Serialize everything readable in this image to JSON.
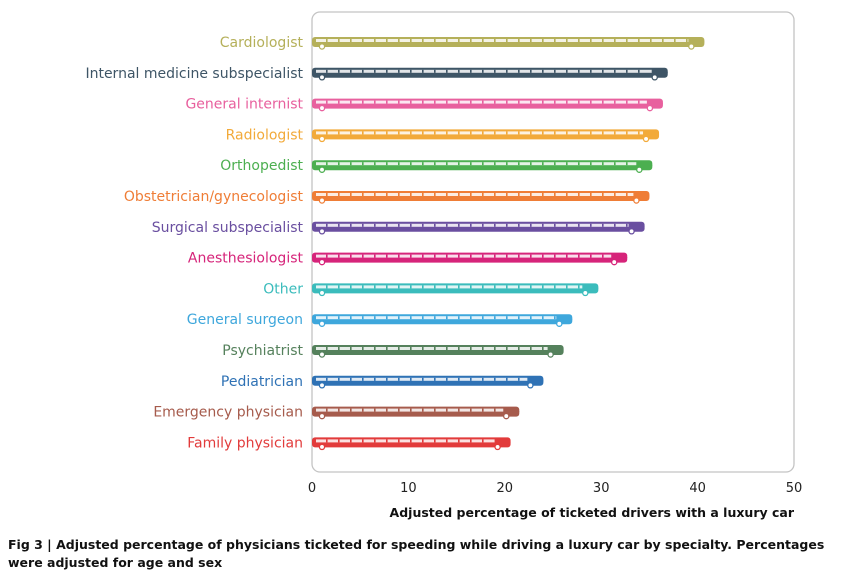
{
  "chart_data": {
    "type": "bar",
    "orientation": "horizontal",
    "categories": [
      "Cardiologist",
      "Internal medicine subspecialist",
      "General internist",
      "Radiologist",
      "Orthopedist",
      "Obstetrician/gynecologist",
      "Surgical subspecialist",
      "Anesthesiologist",
      "Other",
      "General surgeon",
      "Psychiatrist",
      "Pediatrician",
      "Emergency physician",
      "Family physician"
    ],
    "values": [
      40.7,
      36.9,
      36.4,
      36.0,
      35.3,
      35.0,
      34.5,
      32.7,
      29.7,
      27.0,
      26.1,
      24.0,
      21.5,
      20.6
    ],
    "colors": [
      "#b5b05a",
      "#3e5566",
      "#e8609e",
      "#f2aa3a",
      "#4caf50",
      "#ef7d36",
      "#6a4fa0",
      "#d6247a",
      "#3bbcbc",
      "#3ea7dc",
      "#55815c",
      "#2f72b5",
      "#a65b4c",
      "#e23b3b"
    ],
    "title": "",
    "xlabel": "Adjusted percentage of ticketed drivers with a luxury car",
    "ylabel": "",
    "xlim": [
      0,
      50
    ],
    "xticks": [
      0,
      10,
      20,
      30,
      40,
      50
    ]
  },
  "caption": "Fig 3 | Adjusted percentage of physicians ticketed for speeding while driving a luxury car by specialty. Percentages were adjusted for age and sex"
}
